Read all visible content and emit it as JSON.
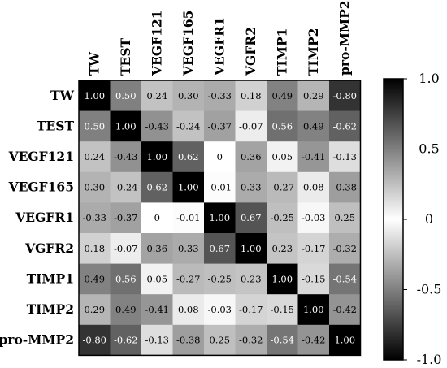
{
  "chart_data": {
    "type": "heatmap",
    "variables": [
      "TW",
      "TEST",
      "VEGF121",
      "VEGF165",
      "VEGFR1",
      "VGFR2",
      "TIMP1",
      "TIMP2",
      "pro-MMP2"
    ],
    "matrix": [
      [
        1.0,
        0.5,
        0.24,
        0.3,
        -0.33,
        0.18,
        0.49,
        0.29,
        -0.8
      ],
      [
        0.5,
        1.0,
        -0.43,
        -0.24,
        -0.37,
        -0.07,
        0.56,
        0.49,
        -0.62
      ],
      [
        0.24,
        -0.43,
        1.0,
        0.62,
        0,
        0.36,
        0.05,
        -0.41,
        -0.13
      ],
      [
        0.3,
        -0.24,
        0.62,
        1.0,
        -0.01,
        0.33,
        -0.27,
        0.08,
        -0.38
      ],
      [
        -0.33,
        -0.37,
        0,
        -0.01,
        1.0,
        0.67,
        -0.25,
        -0.03,
        0.25
      ],
      [
        0.18,
        -0.07,
        0.36,
        0.33,
        0.67,
        1.0,
        0.23,
        -0.17,
        -0.32
      ],
      [
        0.49,
        0.56,
        0.05,
        -0.27,
        -0.25,
        0.23,
        1.0,
        -0.15,
        -0.54
      ],
      [
        0.29,
        0.49,
        -0.41,
        0.08,
        -0.03,
        -0.17,
        -0.15,
        1.0,
        -0.42
      ],
      [
        -0.8,
        -0.62,
        -0.13,
        -0.38,
        0.25,
        -0.32,
        -0.54,
        -0.42,
        1.0
      ]
    ],
    "labels": [
      [
        "1.00",
        "0.50",
        "0.24",
        "0.30",
        "-0.33",
        "0.18",
        "0.49",
        "0.29",
        "-0.80"
      ],
      [
        "0.50",
        "1.00",
        "-0.43",
        "-0.24",
        "-0.37",
        "-0.07",
        "0.56",
        "0.49",
        "-0.62"
      ],
      [
        "0.24",
        "-0.43",
        "1.00",
        "0.62",
        "0",
        "0.36",
        "0.05",
        "-0.41",
        "-0.13"
      ],
      [
        "0.30",
        "-0.24",
        "0.62",
        "1.00",
        "-0.01",
        "0.33",
        "-0.27",
        "0.08",
        "-0.38"
      ],
      [
        "-0.33",
        "-0.37",
        "0",
        "-0.01",
        "1.00",
        "0.67",
        "-0.25",
        "-0.03",
        "0.25"
      ],
      [
        "0.18",
        "-0.07",
        "0.36",
        "0.33",
        "0.67",
        "1.00",
        "0.23",
        "-0.17",
        "-0.32"
      ],
      [
        "0.49",
        "0.56",
        "0.05",
        "-0.27",
        "-0.25",
        "0.23",
        "1.00",
        "-0.15",
        "-0.54"
      ],
      [
        "0.29",
        "0.49",
        "-0.41",
        "0.08",
        "-0.03",
        "-0.17",
        "-0.15",
        "1.00",
        "-0.42"
      ],
      [
        "-0.80",
        "-0.62",
        "-0.13",
        "-0.38",
        "0.25",
        "-0.32",
        "-0.54",
        "-0.42",
        "1.00"
      ]
    ],
    "color_scale": {
      "range": [
        -1.0,
        1.0
      ],
      "ticks": [
        1.0,
        0.5,
        0,
        -0.5,
        -1.0
      ],
      "tick_labels": [
        "1.0",
        "0.5",
        "0",
        "-0.5",
        "-1.0"
      ],
      "colors": {
        "low": "#000000",
        "mid": "#ffffff",
        "high": "#000000"
      },
      "style": "absolute-value grayscale"
    },
    "colorbar_position": "right",
    "title": "",
    "xlabel": "",
    "ylabel": ""
  }
}
